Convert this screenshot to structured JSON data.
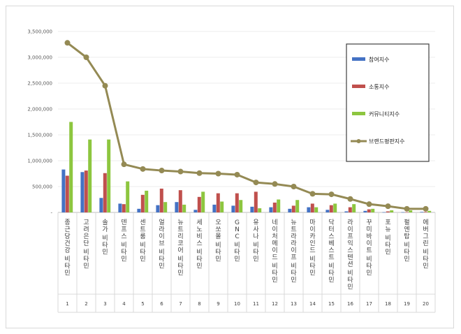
{
  "chart_data": {
    "type": "bar",
    "ylim": [
      0,
      3500000
    ],
    "yticks": [
      0,
      500000,
      1000000,
      1500000,
      2000000,
      2500000,
      3000000,
      3500000
    ],
    "ytick_labels": [
      "-",
      "500,000",
      "1,000,000",
      "1,500,000",
      "2,000,000",
      "2,500,000",
      "3,000,000",
      "3,500,000"
    ],
    "grid": true,
    "legend_position": "right",
    "categories": [
      "종근당건강 비타민",
      "고려은단 비타민",
      "솔가 비타민",
      "덴프스 비타민",
      "센트룸 비타민",
      "얼라이브 비타민",
      "뉴트리코어 비타민",
      "세노비스 비타민",
      "오쏘몰 비타민",
      "GNC 비타민",
      "유사나 비타민",
      "네이처메이드 비타민",
      "뉴트라라이프 비타민",
      "마이카인드 비타민",
      "닥터스베스트 비타민",
      "라이프익스텐션 비타민",
      "꾸미바이트 비타민",
      "포뉴 비타민",
      "펄엔탑 비타민",
      "에버그린 비타민"
    ],
    "ranks": [
      "1",
      "2",
      "3",
      "4",
      "5",
      "6",
      "7",
      "8",
      "9",
      "10",
      "11",
      "12",
      "13",
      "14",
      "15",
      "16",
      "17",
      "18",
      "19",
      "20"
    ],
    "series": [
      {
        "name": "참여지수",
        "type": "bar",
        "color": "#4472c4",
        "values": [
          830000,
          780000,
          280000,
          170000,
          70000,
          140000,
          200000,
          50000,
          150000,
          130000,
          110000,
          100000,
          70000,
          100000,
          50000,
          20000,
          30000,
          5000,
          5000,
          10000
        ]
      },
      {
        "name": "소통지수",
        "type": "bar",
        "color": "#c0504d",
        "values": [
          710000,
          810000,
          760000,
          160000,
          340000,
          460000,
          430000,
          300000,
          370000,
          370000,
          400000,
          190000,
          130000,
          170000,
          140000,
          100000,
          60000,
          20000,
          5000,
          10000
        ]
      },
      {
        "name": "커뮤니티지수",
        "type": "bar",
        "color": "#8dc63f",
        "values": [
          1750000,
          1410000,
          1410000,
          600000,
          420000,
          200000,
          150000,
          400000,
          210000,
          240000,
          80000,
          250000,
          240000,
          100000,
          170000,
          160000,
          70000,
          40000,
          40000,
          30000
        ]
      },
      {
        "name": "브랜드평판지수",
        "type": "line",
        "color": "#948a54",
        "values": [
          3280000,
          3000000,
          2450000,
          930000,
          840000,
          810000,
          790000,
          760000,
          750000,
          730000,
          580000,
          550000,
          500000,
          360000,
          350000,
          260000,
          160000,
          120000,
          70000,
          70000
        ]
      }
    ]
  }
}
